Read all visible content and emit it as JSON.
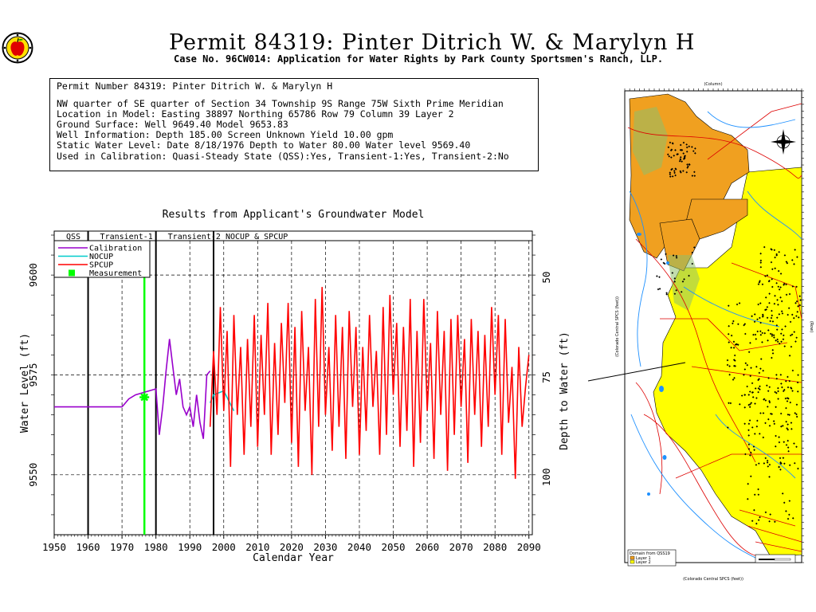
{
  "header": {
    "title": "Permit 84319:  Pinter Ditrich W. & Marylyn H",
    "subtitle": "Case No. 96CW014: Application for Water Rights by Park County Sportsmen's Ranch, LLP."
  },
  "info": {
    "lines": [
      "Permit Number 84319: Pinter Ditrich W. & Marylyn H",
      "",
      "NW quarter of SE quarter of Section 34 Township 9S Range 75W Sixth Prime Meridian",
      "Location in Model: Easting 38897 Northing  65786 Row  79 Column 39 Layer 2",
      "Ground Surface: Well  9649.40 Model  9653.83",
      "Well Information: Depth   185.00 Screen Unknown Yield     10.00 gpm",
      "Static Water Level: Date  8/18/1976 Depth to Water    80.00 Water level  9569.40",
      "Used in Calibration: Quasi-Steady State (QSS):Yes, Transient-1:Yes, Transient-2:No"
    ]
  },
  "chart_data": {
    "type": "line",
    "title": "Results from Applicant's Groundwater Model",
    "xlabel": "Calendar Year",
    "ylabel": "Water Level (ft)",
    "y2label": "Depth to Water (ft)",
    "xlim": [
      1950,
      2091
    ],
    "ylim": [
      9535,
      9611
    ],
    "x_ticks": [
      1950,
      1960,
      1970,
      1980,
      1990,
      2000,
      2010,
      2020,
      2030,
      2040,
      2050,
      2060,
      2070,
      2080,
      2090
    ],
    "y_ticks": [
      9550,
      9575,
      9600
    ],
    "y2_ticks": [
      50,
      75,
      100
    ],
    "periods": [
      {
        "label": "QSS",
        "start": 1950,
        "end": 1960
      },
      {
        "label": "Transient-1",
        "start": 1960,
        "end": 1980
      },
      {
        "label": "Transient-2",
        "start": 1980,
        "end": 1997
      },
      {
        "label": "NOCUP & SPCUP",
        "start": 1997,
        "end": 2091
      }
    ],
    "grid": true,
    "legend_position": "top-left",
    "series": [
      {
        "name": "Calibration",
        "color": "#9900cc",
        "x": [
          1950,
          1960,
          1970,
          1971,
          1972,
          1974,
          1976,
          1978,
          1980,
          1981,
          1982,
          1983,
          1984,
          1985,
          1986,
          1987,
          1988,
          1989,
          1990,
          1991,
          1992,
          1993,
          1994,
          1995,
          1996
        ],
        "y": [
          9567,
          9567,
          9567,
          9568,
          9569,
          9570,
          9570.5,
          9571,
          9571.5,
          9560,
          9567,
          9576,
          9584,
          9577,
          9570,
          9574,
          9567,
          9565,
          9567,
          9562,
          9570,
          9563,
          9559,
          9575,
          9576
        ]
      },
      {
        "name": "NOCUP",
        "color": "#00cccc",
        "x": [
          1996,
          1997,
          2000,
          2003
        ],
        "y": [
          9568,
          9570,
          9571,
          9566
        ]
      },
      {
        "name": "SPCUP",
        "color": "#ff0000",
        "x": [
          1996,
          1997,
          1998,
          1999,
          2000,
          2001,
          2002,
          2003,
          2004,
          2005,
          2006,
          2007,
          2008,
          2009,
          2010,
          2011,
          2012,
          2013,
          2014,
          2015,
          2016,
          2017,
          2018,
          2019,
          2020,
          2021,
          2022,
          2023,
          2024,
          2025,
          2026,
          2027,
          2028,
          2029,
          2030,
          2031,
          2032,
          2033,
          2034,
          2035,
          2036,
          2037,
          2038,
          2039,
          2040,
          2041,
          2042,
          2043,
          2044,
          2045,
          2046,
          2047,
          2048,
          2049,
          2050,
          2051,
          2052,
          2053,
          2054,
          2055,
          2056,
          2057,
          2058,
          2059,
          2060,
          2061,
          2062,
          2063,
          2064,
          2065,
          2066,
          2067,
          2068,
          2069,
          2070,
          2071,
          2072,
          2073,
          2074,
          2075,
          2076,
          2077,
          2078,
          2079,
          2080,
          2081,
          2082,
          2083,
          2084,
          2085,
          2086,
          2087,
          2088,
          2089,
          2090
        ],
        "y": [
          9562,
          9581,
          9565,
          9592,
          9566,
          9586,
          9552,
          9590,
          9565,
          9582,
          9555,
          9584,
          9562,
          9590,
          9557,
          9585,
          9565,
          9593,
          9555,
          9583,
          9560,
          9588,
          9568,
          9593,
          9558,
          9587,
          9552,
          9591,
          9566,
          9582,
          9550,
          9594,
          9562,
          9597,
          9565,
          9582,
          9556,
          9590,
          9562,
          9587,
          9554,
          9591,
          9567,
          9587,
          9555,
          9582,
          9561,
          9590,
          9567,
          9581,
          9555,
          9592,
          9560,
          9595,
          9570,
          9588,
          9557,
          9587,
          9561,
          9594,
          9552,
          9586,
          9558,
          9594,
          9566,
          9583,
          9554,
          9591,
          9565,
          9586,
          9551,
          9589,
          9560,
          9590,
          9567,
          9584,
          9553,
          9589,
          9565,
          9586,
          9557,
          9585,
          9562,
          9592,
          9570,
          9590,
          9555,
          9589,
          9563,
          9577,
          9549,
          9582,
          9562,
          9572,
          9580
        ]
      }
    ],
    "measurement": {
      "name": "Measurement",
      "x": 1976.6,
      "y": 9569.4,
      "color": "#00ff00"
    }
  },
  "map": {
    "top_axis_label": "(Column)",
    "bottom_axis_label": "(Colorado Central SPCS (feet))",
    "left_axis_label": "(Colorado Central SPCS (feet))",
    "right_axis_label": "(Row)",
    "legend_title": "Domain from QSS19",
    "legend_items": [
      {
        "label": "Layer 1",
        "color": "#f0a020"
      },
      {
        "label": "Layer 2",
        "color": "#ffff00"
      }
    ],
    "colors": {
      "layer1": "#f0a020",
      "layer2": "#ffff00",
      "rivers": "#1e90ff",
      "roads": "#dd0000"
    }
  }
}
